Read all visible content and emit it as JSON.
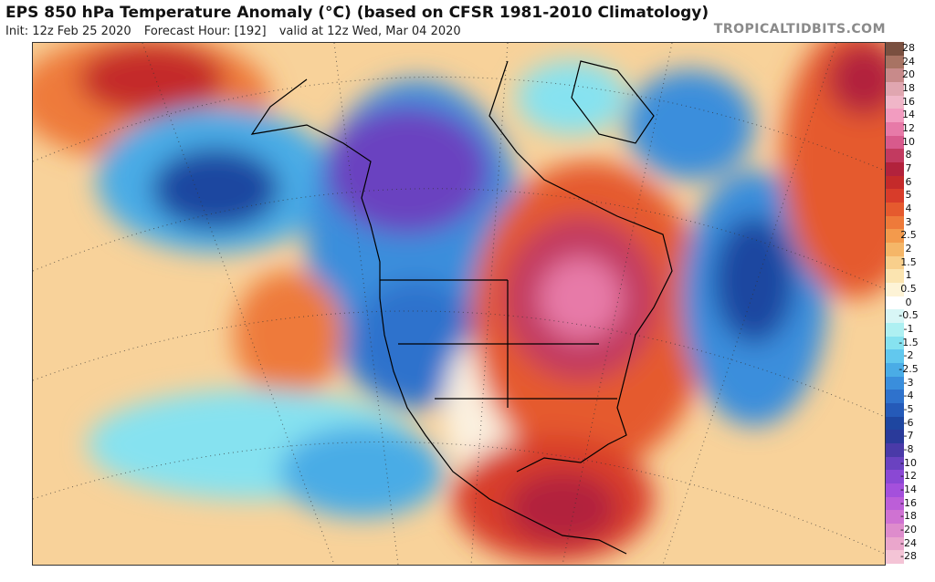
{
  "header": {
    "title": "EPS 850 hPa Temperature Anomaly (°C) (based on CFSR 1981-2010 Climatology)",
    "init": "Init: 12z Feb 25 2020",
    "forecast_hour": "Forecast Hour: [192]",
    "valid": "valid at 12z Wed, Mar 04 2020",
    "brand": "TROPICALTIDBITS.COM"
  },
  "colorbar": {
    "levels": [
      {
        "label": "28",
        "color": "#7a5040"
      },
      {
        "label": "24",
        "color": "#a87363"
      },
      {
        "label": "20",
        "color": "#c88a8a"
      },
      {
        "label": "18",
        "color": "#e0a6b0"
      },
      {
        "label": "16",
        "color": "#f0b6c8"
      },
      {
        "label": "14",
        "color": "#f29cc0"
      },
      {
        "label": "12",
        "color": "#e77aa8"
      },
      {
        "label": "10",
        "color": "#d85a8c"
      },
      {
        "label": "8",
        "color": "#c23a60"
      },
      {
        "label": "7",
        "color": "#b2223c"
      },
      {
        "label": "6",
        "color": "#c42a2a"
      },
      {
        "label": "5",
        "color": "#d83c2a"
      },
      {
        "label": "4",
        "color": "#e55a2e"
      },
      {
        "label": "3",
        "color": "#ee7a3a"
      },
      {
        "label": "2.5",
        "color": "#f39a4c"
      },
      {
        "label": "2",
        "color": "#f5b668"
      },
      {
        "label": "1.5",
        "color": "#f8cf8c"
      },
      {
        "label": "1",
        "color": "#fbe4b0"
      },
      {
        "label": "0.5",
        "color": "#fdf3d6"
      },
      {
        "label": "0",
        "color": "#ffffff"
      },
      {
        "label": "-0.5",
        "color": "#d8f6f6"
      },
      {
        "label": "-1",
        "color": "#aef0f2"
      },
      {
        "label": "-1.5",
        "color": "#86e2f0"
      },
      {
        "label": "-2",
        "color": "#62c8ee"
      },
      {
        "label": "-2.5",
        "color": "#4aace6"
      },
      {
        "label": "-3",
        "color": "#3a8edc"
      },
      {
        "label": "-4",
        "color": "#2f72cc"
      },
      {
        "label": "-5",
        "color": "#255ab8"
      },
      {
        "label": "-6",
        "color": "#1e46a0"
      },
      {
        "label": "-7",
        "color": "#2a3a9a"
      },
      {
        "label": "-8",
        "color": "#4a3aa8"
      },
      {
        "label": "-10",
        "color": "#6a42c0"
      },
      {
        "label": "-12",
        "color": "#8a48d4"
      },
      {
        "label": "-14",
        "color": "#a450dc"
      },
      {
        "label": "-16",
        "color": "#bc5ed8"
      },
      {
        "label": "-18",
        "color": "#cf72d2"
      },
      {
        "label": "-20",
        "color": "#de8ccc"
      },
      {
        "label": "-24",
        "color": "#eaa6cc"
      },
      {
        "label": "-28",
        "color": "#f4c4d6"
      }
    ]
  }
}
